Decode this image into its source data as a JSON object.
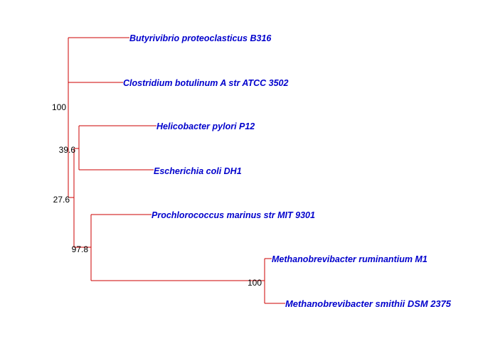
{
  "tree": {
    "leaves": [
      {
        "id": "l1",
        "label": "Butyrivibrio proteoclasticus B316"
      },
      {
        "id": "l2",
        "label": "Clostridium botulinum A str ATCC 3502"
      },
      {
        "id": "l3",
        "label": "Helicobacter pylori P12"
      },
      {
        "id": "l4",
        "label": "Escherichia coli DH1"
      },
      {
        "id": "l5",
        "label": "Prochlorococcus marinus str MIT 9301"
      },
      {
        "id": "l6",
        "label": "Methanobrevibacter ruminantium M1"
      },
      {
        "id": "l7",
        "label": "Methanobrevibacter smithii DSM 2375"
      }
    ],
    "support": {
      "root": "100",
      "node_39": "39.6",
      "node_27": "27.6",
      "node_97": "97.8",
      "node_methano": "100"
    },
    "colors": {
      "branch": "#cc0000",
      "leaf_text": "#0000cc",
      "node_text": "#000000"
    }
  }
}
